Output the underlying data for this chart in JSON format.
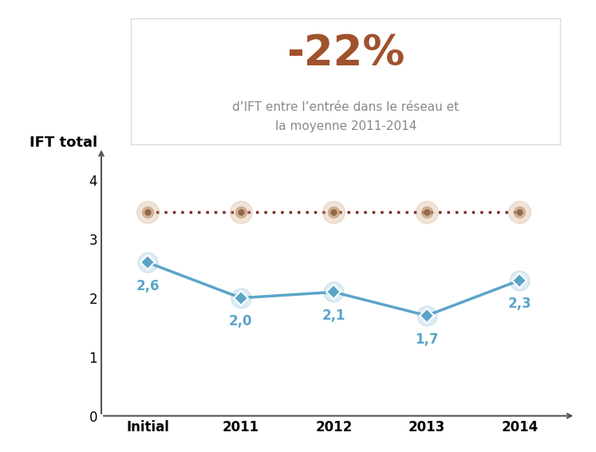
{
  "x_labels": [
    "Initial",
    "2011",
    "2012",
    "2013",
    "2014"
  ],
  "y_values": [
    2.6,
    2.0,
    2.1,
    1.7,
    2.3
  ],
  "reference_line_y": 3.45,
  "reference_line_color": "#7B2D2D",
  "line_color": "#5BA4C8",
  "marker_color": "#5BA4C8",
  "data_label_color": "#5BA4C8",
  "ylabel": "IFT total",
  "ylim": [
    0,
    4.6
  ],
  "yticks": [
    0,
    1,
    2,
    3,
    4
  ],
  "value_labels": [
    "2,6",
    "2,0",
    "2,1",
    "1,7",
    "2,3"
  ],
  "annotation_percent": "-22%",
  "annotation_percent_color": "#A0522D",
  "annotation_text": "d’IFT entre l’entrée dans le réseau et\nla moyenne 2011-2014",
  "annotation_text_color": "#888888",
  "box_facecolor": "#FFFFFF",
  "box_edgecolor": "#DDDDDD",
  "background_color": "#FFFFFF",
  "reference_marker_color": "#C4956A",
  "data_label_fontsize": 12,
  "axis_label_fontsize": 13,
  "tick_label_fontsize": 12,
  "percent_fontsize": 38,
  "annotation_fontsize": 11
}
